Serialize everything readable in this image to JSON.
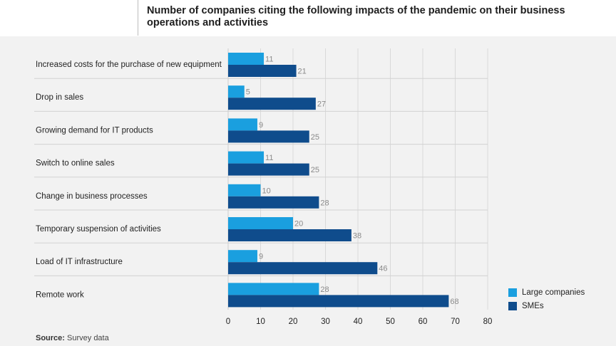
{
  "title": "Number of companies citing the following impacts of the pandemic on their business operations and activities",
  "source": {
    "label": "Source:",
    "text": " Survey data"
  },
  "chart_data": {
    "type": "bar",
    "orientation": "horizontal",
    "categories": [
      "Increased costs for the purchase of new equipment",
      "Drop in sales",
      "Growing demand for IT products",
      "Switch to online sales",
      "Change in business processes",
      "Temporary suspension of activities",
      "Load of IT infrastructure",
      "Remote work"
    ],
    "series": [
      {
        "name": "Large companies",
        "color": "#1a9fdf",
        "values": [
          11,
          5,
          9,
          11,
          10,
          20,
          9,
          28
        ]
      },
      {
        "name": "SMEs",
        "color": "#0f4c8c",
        "values": [
          21,
          27,
          25,
          25,
          28,
          38,
          46,
          68
        ]
      }
    ],
    "xlim": [
      0,
      80
    ],
    "xticks": [
      0,
      10,
      20,
      30,
      40,
      50,
      60,
      70,
      80
    ],
    "grid": true,
    "legend": "bottom-right"
  }
}
